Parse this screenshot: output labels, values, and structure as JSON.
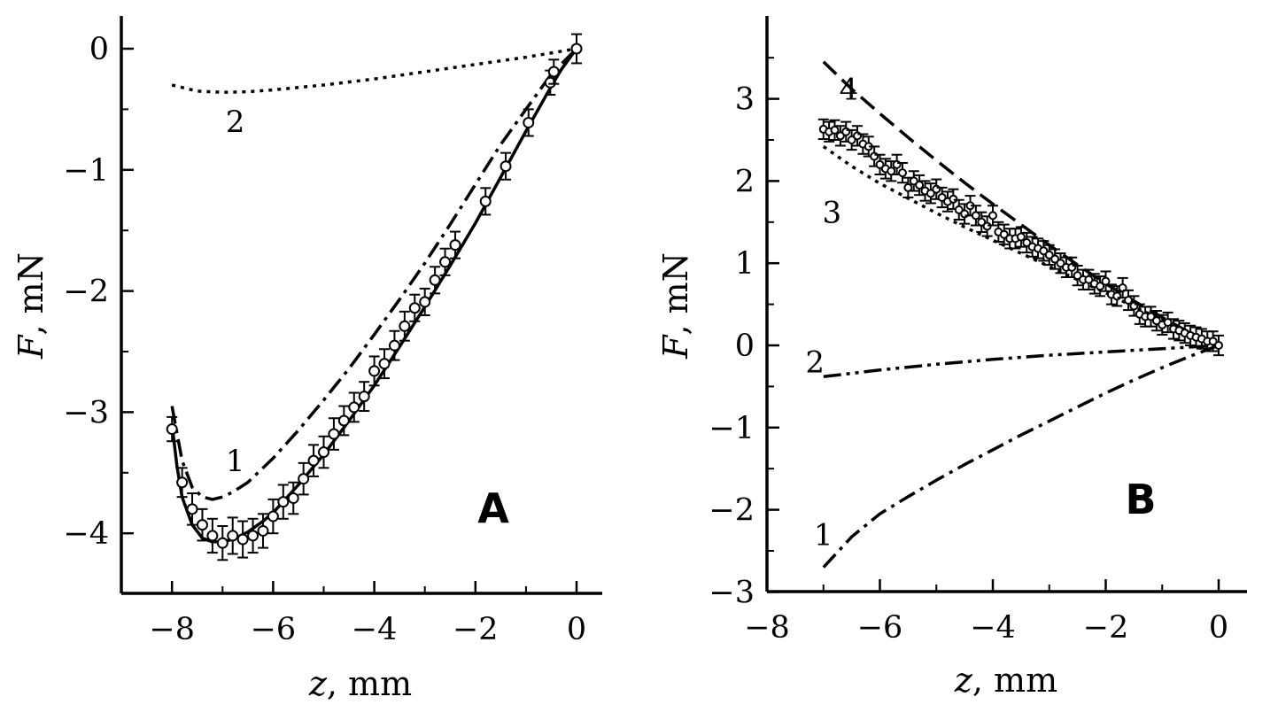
{
  "colors": {
    "ink": "#000000",
    "background": "#ffffff"
  },
  "chart_data": [
    {
      "type": "line",
      "panel": "A",
      "xlabel_var": "z",
      "xlabel_unit": ", mm",
      "ylabel_var": "F",
      "ylabel_unit": ", mN",
      "xlim": [
        -9,
        0.5
      ],
      "ylim": [
        -4.5,
        0.25
      ],
      "xticks": [
        -8,
        -6,
        -4,
        -2,
        0
      ],
      "yticks": [
        0,
        -1,
        -2,
        -3,
        -4
      ],
      "xtick_labels": [
        "−8",
        "−6",
        "−4",
        "−2",
        "0"
      ],
      "ytick_labels": [
        "0",
        "−1",
        "−2",
        "−3",
        "−4"
      ],
      "grid": false,
      "series": [
        {
          "label": "1",
          "style": "dashdot",
          "label_pos": [
            -6.75,
            -3.4
          ],
          "x": [
            -8.0,
            -7.8,
            -7.6,
            -7.4,
            -7.2,
            -7.0,
            -6.8,
            -6.5,
            -6.0,
            -5.5,
            -5.0,
            -4.5,
            -4.0,
            -3.5,
            -3.0,
            -2.5,
            -2.0,
            -1.5,
            -1.0,
            -0.5,
            0.0
          ],
          "y": [
            -2.95,
            -3.4,
            -3.62,
            -3.7,
            -3.72,
            -3.7,
            -3.66,
            -3.58,
            -3.38,
            -3.15,
            -2.9,
            -2.64,
            -2.36,
            -2.07,
            -1.77,
            -1.45,
            -1.12,
            -0.79,
            -0.5,
            -0.21,
            0.0
          ]
        },
        {
          "label": "2",
          "style": "dotted",
          "label_pos": [
            -6.75,
            -0.6
          ],
          "x": [
            -8.0,
            -7.5,
            -7.0,
            -6.5,
            -6.0,
            -5.0,
            -4.0,
            -3.0,
            -2.0,
            -1.0,
            0.0
          ],
          "y": [
            -0.3,
            -0.35,
            -0.36,
            -0.355,
            -0.34,
            -0.3,
            -0.25,
            -0.19,
            -0.13,
            -0.07,
            0.0
          ]
        },
        {
          "label": "",
          "style": "solid",
          "x": [
            -8.0,
            -7.9,
            -7.8,
            -7.6,
            -7.4,
            -7.2,
            -7.0,
            -6.8,
            -6.5,
            -6.2,
            -6.0,
            -5.5,
            -5.0,
            -4.5,
            -4.0,
            -3.5,
            -3.0,
            -2.5,
            -2.0,
            -1.5,
            -1.0,
            -0.5,
            -0.3,
            0.0
          ],
          "y": [
            -3.1,
            -3.45,
            -3.7,
            -3.93,
            -4.04,
            -4.07,
            -4.07,
            -4.05,
            -3.99,
            -3.9,
            -3.83,
            -3.6,
            -3.35,
            -3.07,
            -2.78,
            -2.46,
            -2.13,
            -1.79,
            -1.44,
            -1.06,
            -0.68,
            -0.31,
            -0.17,
            0.0
          ]
        }
      ],
      "points": {
        "x": [
          -8.0,
          -7.8,
          -7.6,
          -7.4,
          -7.2,
          -7.0,
          -6.8,
          -6.6,
          -6.4,
          -6.2,
          -6.0,
          -5.8,
          -5.6,
          -5.4,
          -5.2,
          -5.0,
          -4.8,
          -4.6,
          -4.4,
          -4.2,
          -4.0,
          -3.8,
          -3.6,
          -3.4,
          -3.2,
          -3.0,
          -2.8,
          -2.6,
          -2.4,
          -1.8,
          -1.4,
          -0.95,
          -0.52,
          -0.45,
          0.0
        ],
        "y": [
          -3.14,
          -3.58,
          -3.8,
          -3.93,
          -4.02,
          -4.08,
          -4.02,
          -4.05,
          -4.02,
          -3.98,
          -3.86,
          -3.74,
          -3.71,
          -3.55,
          -3.4,
          -3.33,
          -3.18,
          -3.07,
          -2.96,
          -2.87,
          -2.66,
          -2.6,
          -2.45,
          -2.29,
          -2.14,
          -2.09,
          -1.91,
          -1.76,
          -1.62,
          -1.26,
          -0.97,
          -0.61,
          -0.28,
          -0.19,
          0.0
        ],
        "err": [
          0.1,
          0.12,
          0.13,
          0.13,
          0.14,
          0.14,
          0.15,
          0.15,
          0.14,
          0.14,
          0.14,
          0.14,
          0.13,
          0.13,
          0.13,
          0.13,
          0.13,
          0.12,
          0.12,
          0.12,
          0.12,
          0.12,
          0.12,
          0.12,
          0.11,
          0.11,
          0.11,
          0.11,
          0.11,
          0.11,
          0.11,
          0.11,
          0.1,
          0.1,
          0.12
        ]
      }
    },
    {
      "type": "line",
      "panel": "B",
      "xlabel_var": "z",
      "xlabel_unit": ", mm",
      "ylabel_var": "F",
      "ylabel_unit": ", mN",
      "xlim": [
        -8,
        0.5
      ],
      "ylim": [
        -3,
        4
      ],
      "xticks": [
        -8,
        -6,
        -4,
        -2,
        0
      ],
      "yticks": [
        3,
        2,
        1,
        0,
        -1,
        -2,
        -3
      ],
      "xtick_labels": [
        "−8",
        "−6",
        "−4",
        "−2",
        "0"
      ],
      "ytick_labels": [
        "3",
        "2",
        "1",
        "0",
        "−1",
        "−2",
        "−3"
      ],
      "grid": false,
      "series": [
        {
          "label": "4",
          "style": "dashed",
          "label_pos": [
            -6.55,
            3.12
          ],
          "x": [
            -7.0,
            -6.5,
            -6.0,
            -5.5,
            -5.0,
            -4.5,
            -4.0,
            -3.5,
            -3.0,
            -2.5,
            -2.0,
            -1.5,
            -1.0,
            -0.5,
            0.0
          ],
          "y": [
            3.45,
            3.12,
            2.82,
            2.53,
            2.25,
            1.98,
            1.72,
            1.47,
            1.22,
            0.98,
            0.75,
            0.54,
            0.34,
            0.15,
            0.0
          ]
        },
        {
          "label": "3",
          "style": "dotted",
          "label_pos": [
            -6.85,
            1.62
          ],
          "x": [
            -7.0,
            -6.5,
            -6.0,
            -5.5,
            -5.0,
            -4.5,
            -4.0,
            -3.5,
            -3.0,
            -2.5,
            -2.0,
            -1.5,
            -1.0,
            -0.5,
            0.0
          ],
          "y": [
            2.42,
            2.18,
            1.97,
            1.79,
            1.61,
            1.44,
            1.28,
            1.12,
            0.96,
            0.8,
            0.64,
            0.47,
            0.31,
            0.15,
            0.0
          ]
        },
        {
          "label": "2",
          "style": "dashdotdot",
          "label_pos": [
            -7.15,
            -0.2
          ],
          "x": [
            -7.0,
            -6.0,
            -5.0,
            -4.0,
            -3.0,
            -2.0,
            -1.0,
            -0.5,
            0.0
          ],
          "y": [
            -0.38,
            -0.3,
            -0.23,
            -0.17,
            -0.12,
            -0.08,
            -0.04,
            -0.02,
            0.0
          ]
        },
        {
          "label": "1",
          "style": "dashdot",
          "label_pos": [
            -7.0,
            -2.3
          ],
          "x": [
            -7.0,
            -6.5,
            -6.0,
            -5.5,
            -5.0,
            -4.5,
            -4.0,
            -3.5,
            -3.0,
            -2.5,
            -2.0,
            -1.5,
            -1.0,
            -0.5,
            0.0
          ],
          "y": [
            -2.7,
            -2.33,
            -2.05,
            -1.84,
            -1.64,
            -1.45,
            -1.27,
            -1.09,
            -0.92,
            -0.75,
            -0.58,
            -0.42,
            -0.27,
            -0.13,
            0.0
          ]
        }
      ],
      "points": {
        "x": [
          -7.0,
          -6.9,
          -6.8,
          -6.7,
          -6.6,
          -6.5,
          -6.4,
          -6.3,
          -6.2,
          -6.1,
          -6.0,
          -5.9,
          -5.8,
          -5.7,
          -5.6,
          -5.5,
          -5.4,
          -5.3,
          -5.2,
          -5.1,
          -5.0,
          -4.9,
          -4.8,
          -4.7,
          -4.6,
          -4.5,
          -4.4,
          -4.3,
          -4.2,
          -4.1,
          -4.0,
          -3.9,
          -3.8,
          -3.7,
          -3.6,
          -3.5,
          -3.4,
          -3.3,
          -3.2,
          -3.1,
          -3.0,
          -2.9,
          -2.8,
          -2.7,
          -2.6,
          -2.5,
          -2.4,
          -2.3,
          -2.2,
          -2.1,
          -2.0,
          -1.9,
          -1.8,
          -1.7,
          -1.6,
          -1.5,
          -1.4,
          -1.3,
          -1.2,
          -1.1,
          -1.0,
          -0.9,
          -0.8,
          -0.7,
          -0.6,
          -0.5,
          -0.4,
          -0.3,
          -0.2,
          -0.1,
          0.0
        ],
        "y": [
          2.63,
          2.6,
          2.62,
          2.55,
          2.6,
          2.5,
          2.55,
          2.45,
          2.42,
          2.3,
          2.2,
          2.15,
          2.12,
          2.2,
          2.1,
          1.92,
          2.0,
          1.95,
          1.88,
          1.85,
          1.9,
          1.8,
          1.75,
          1.78,
          1.65,
          1.6,
          1.7,
          1.58,
          1.5,
          1.45,
          1.58,
          1.38,
          1.35,
          1.3,
          1.3,
          1.32,
          1.25,
          1.2,
          1.18,
          1.15,
          1.1,
          1.05,
          1.0,
          0.95,
          0.95,
          0.85,
          0.8,
          0.8,
          0.75,
          0.72,
          0.78,
          0.62,
          0.6,
          0.7,
          0.55,
          0.48,
          0.38,
          0.35,
          0.35,
          0.3,
          0.25,
          0.28,
          0.2,
          0.18,
          0.15,
          0.12,
          0.1,
          0.08,
          0.05,
          0.05,
          0.0
        ],
        "err": [
          0.12,
          0.12,
          0.12,
          0.12,
          0.12,
          0.12,
          0.12,
          0.12,
          0.12,
          0.12,
          0.12,
          0.12,
          0.12,
          0.12,
          0.12,
          0.12,
          0.12,
          0.12,
          0.12,
          0.12,
          0.12,
          0.12,
          0.12,
          0.12,
          0.12,
          0.12,
          0.12,
          0.12,
          0.12,
          0.12,
          0.12,
          0.12,
          0.12,
          0.12,
          0.12,
          0.12,
          0.12,
          0.12,
          0.12,
          0.12,
          0.12,
          0.12,
          0.12,
          0.12,
          0.12,
          0.12,
          0.12,
          0.12,
          0.12,
          0.12,
          0.12,
          0.12,
          0.12,
          0.12,
          0.12,
          0.12,
          0.12,
          0.12,
          0.12,
          0.12,
          0.12,
          0.12,
          0.12,
          0.12,
          0.12,
          0.12,
          0.12,
          0.12,
          0.12,
          0.12,
          0.12
        ]
      }
    }
  ]
}
